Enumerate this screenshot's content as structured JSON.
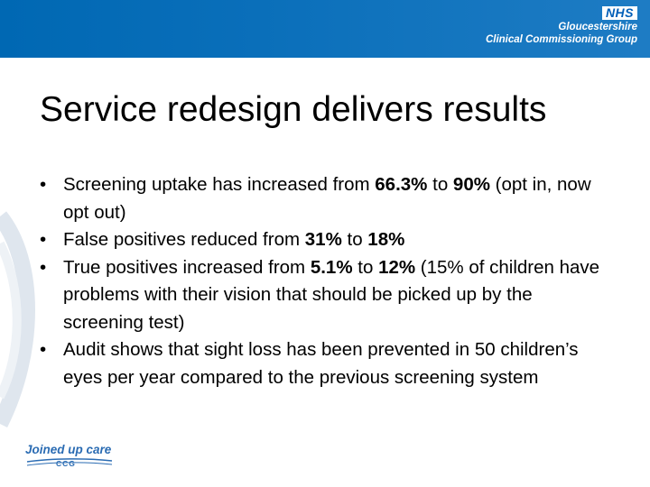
{
  "header": {
    "logo_text": "NHS",
    "org_line_1": "Gloucestershire",
    "org_line_2": "Clinical Commissioning Group"
  },
  "slide": {
    "title": "Service redesign delivers results",
    "bullets": [
      {
        "parts": [
          {
            "text": "Screening uptake has increased from ",
            "bold": false
          },
          {
            "text": "66.3%",
            "bold": true
          },
          {
            "text": " to ",
            "bold": false
          },
          {
            "text": "90%",
            "bold": true
          },
          {
            "text": " (opt in, now opt out)",
            "bold": false
          }
        ]
      },
      {
        "parts": [
          {
            "text": "False positives reduced from ",
            "bold": false
          },
          {
            "text": "31%",
            "bold": true
          },
          {
            "text": " to ",
            "bold": false
          },
          {
            "text": "18%",
            "bold": true
          }
        ]
      },
      {
        "parts": [
          {
            "text": "True positives increased from ",
            "bold": false
          },
          {
            "text": "5.1%",
            "bold": true
          },
          {
            "text": " to ",
            "bold": false
          },
          {
            "text": "12%",
            "bold": true
          },
          {
            "text": " (15% of children have problems with their vision that should be picked up by the screening test)",
            "bold": false
          }
        ]
      },
      {
        "parts": [
          {
            "text": "Audit shows that sight loss has been prevented in 50 children’s eyes per year compared to the previous screening system",
            "bold": false
          }
        ]
      }
    ]
  },
  "footer": {
    "logo_text": "Joined up care",
    "logo_subtext": "CCG"
  },
  "colors": {
    "header_blue": "#0068b3",
    "nhs_blue": "#005eb8",
    "footer_blue": "#2b6cb3"
  },
  "icons": {
    "bullet": "•"
  }
}
